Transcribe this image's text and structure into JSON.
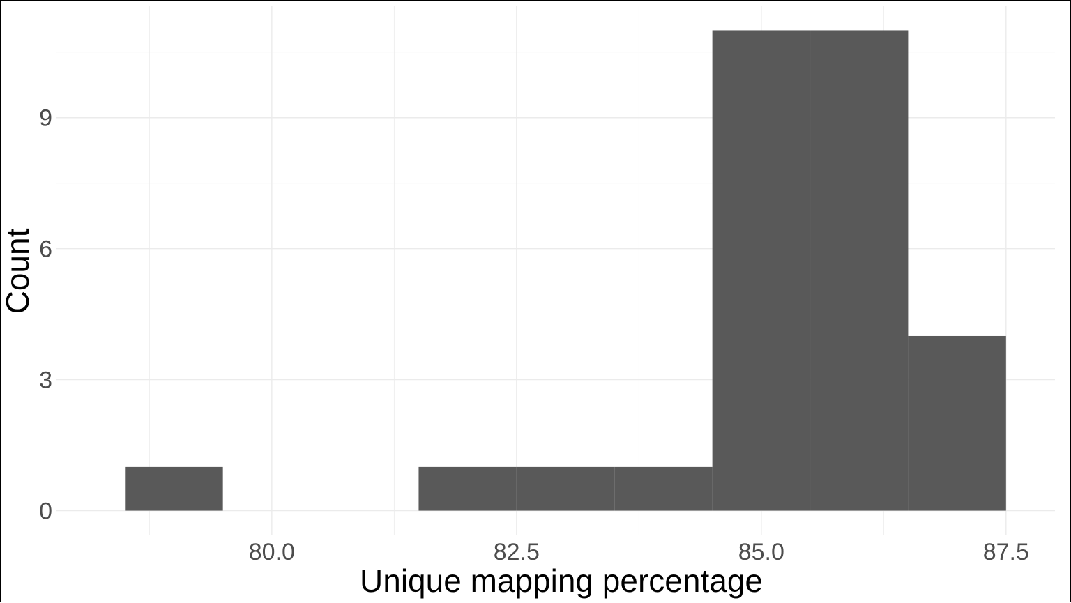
{
  "chart_data": {
    "type": "bar",
    "subtype": "histogram",
    "bin_width": 1,
    "bins": [
      {
        "start": 78.5,
        "end": 79.5,
        "count": 1
      },
      {
        "start": 79.5,
        "end": 80.5,
        "count": 0
      },
      {
        "start": 80.5,
        "end": 81.5,
        "count": 0
      },
      {
        "start": 81.5,
        "end": 82.5,
        "count": 1
      },
      {
        "start": 82.5,
        "end": 83.5,
        "count": 1
      },
      {
        "start": 83.5,
        "end": 84.5,
        "count": 1
      },
      {
        "start": 84.5,
        "end": 85.5,
        "count": 11
      },
      {
        "start": 85.5,
        "end": 86.5,
        "count": 11
      },
      {
        "start": 86.5,
        "end": 87.5,
        "count": 4
      }
    ],
    "xlabel": "Unique mapping percentage",
    "ylabel": "Count",
    "xlim": [
      77.8,
      88.0
    ],
    "ylim": [
      -0.55,
      11.55
    ],
    "x_ticks": [
      80.0,
      82.5,
      85.0,
      87.5
    ],
    "x_tick_labels": [
      "80.0",
      "82.5",
      "85.0",
      "87.5"
    ],
    "y_ticks": [
      0,
      3,
      6,
      9
    ],
    "y_tick_labels": [
      "0",
      "3",
      "6",
      "9"
    ],
    "grid": true,
    "legend": "none",
    "bar_color": "#595959",
    "grid_color": "#ebebeb"
  }
}
